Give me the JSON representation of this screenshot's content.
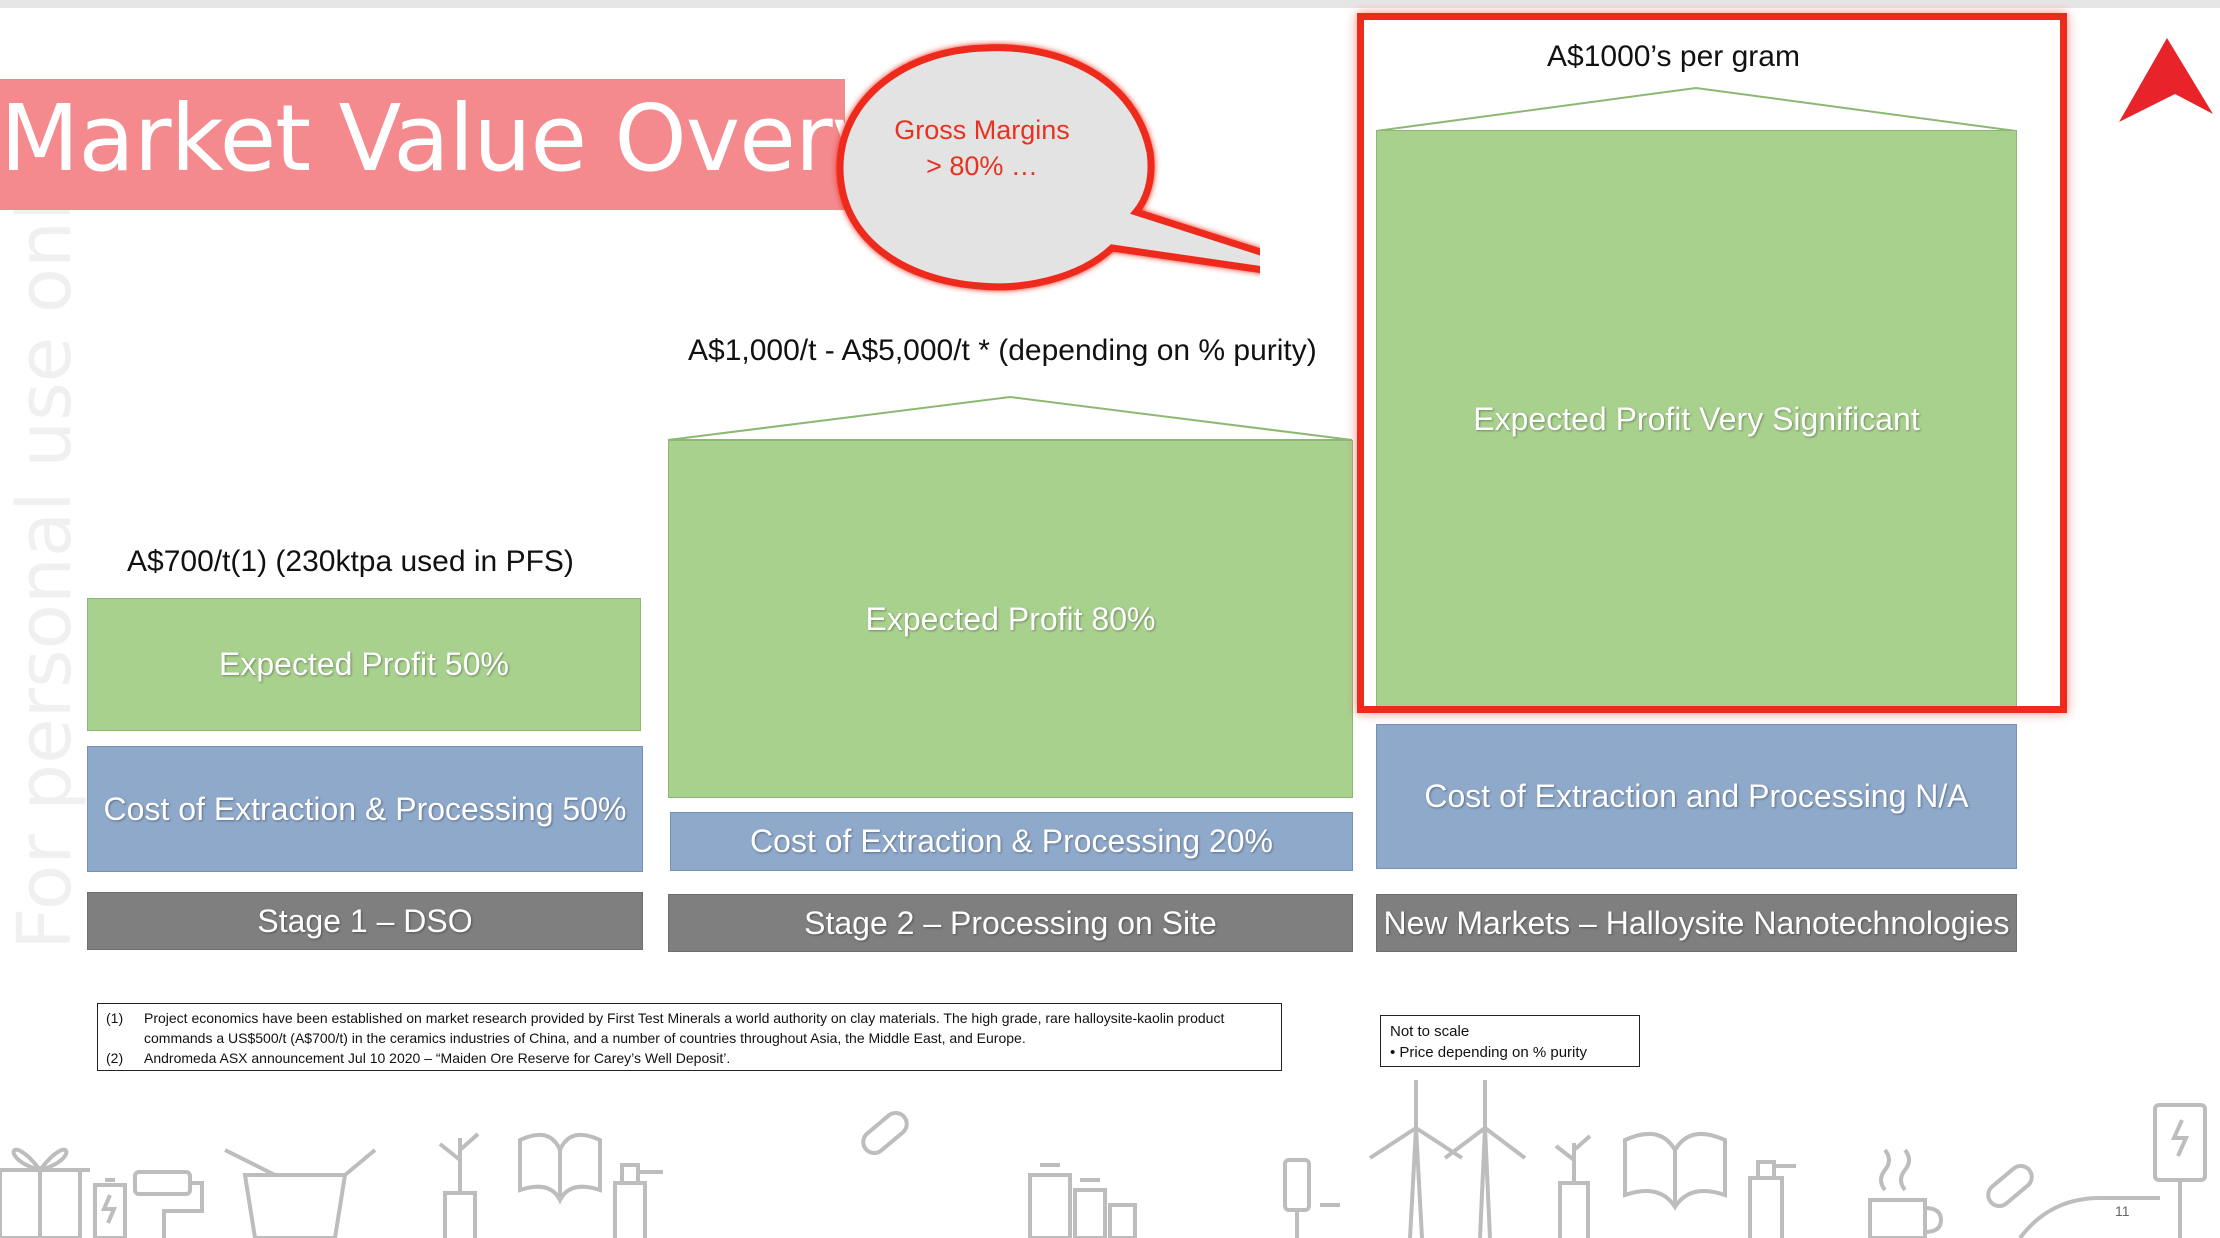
{
  "title": "Market Value Overvie",
  "watermark": "For personal use only",
  "callout": {
    "line1": "Gross Margins",
    "line2": "> 80% …"
  },
  "columns": [
    {
      "price": "A$700/t(1) (230ktpa used in PFS)",
      "profit": "Expected Profit 50%",
      "cost": "Cost of Extraction & Processing 50%",
      "stage": "Stage 1 – DSO"
    },
    {
      "price": "A$1,000/t - A$5,000/t * (depending on % purity)",
      "profit": "Expected Profit 80%",
      "cost": "Cost of Extraction & Processing 20%",
      "stage": "Stage 2 – Processing on Site"
    },
    {
      "price": "A$1000’s per gram",
      "profit": "Expected Profit Very Significant",
      "cost": "Cost of Extraction and Processing N/A",
      "stage": "New Markets – Halloysite Nanotechnologies"
    }
  ],
  "footnotes": [
    {
      "num": "(1)",
      "text": "Project economics have been established on market research provided by First Test Minerals a world authority on clay materials.  The high grade, rare halloysite-kaolin product commands a US$500/t (A$700/t) in the ceramics industries  of China, and a number of countries throughout Asia, the Middle East, and Europe."
    },
    {
      "num": "(2)",
      "text": "Andromeda ASX announcement Jul 10 2020 – “Maiden Ore Reserve for Carey’s Well Deposit’."
    }
  ],
  "scale_note": {
    "line1": "Not to scale",
    "line2": "•  Price depending on % purity"
  },
  "page_number": "11",
  "colors": {
    "title_band": "#f4898e",
    "profit_green": "#a9d18e",
    "cost_blue": "#8fa9cb",
    "stage_gray": "#7f7f7f",
    "highlight_red": "#ee2a1b"
  }
}
